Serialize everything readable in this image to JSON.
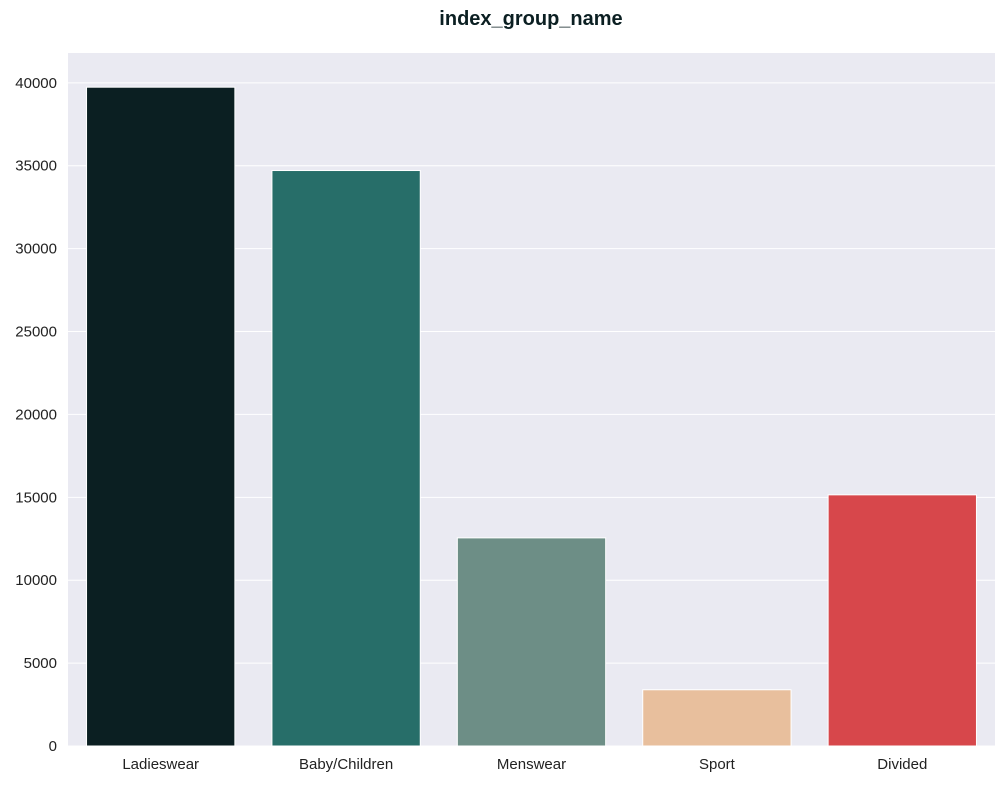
{
  "chart_data": {
    "type": "bar",
    "title": "index_group_name",
    "xlabel": "",
    "ylabel": "",
    "categories": [
      "Ladieswear",
      "Baby/Children",
      "Menswear",
      "Sport",
      "Divided"
    ],
    "values": [
      39737,
      34711,
      12553,
      3392,
      15149
    ],
    "colors": [
      "#0b1f22",
      "#276e69",
      "#6d8e86",
      "#e8bf9d",
      "#d7474b"
    ],
    "ylim": [
      0,
      41800
    ],
    "yticks": [
      0,
      5000,
      10000,
      15000,
      20000,
      25000,
      30000,
      35000,
      40000
    ],
    "grid": true,
    "background": "#eaeaf2",
    "legend": "none"
  }
}
